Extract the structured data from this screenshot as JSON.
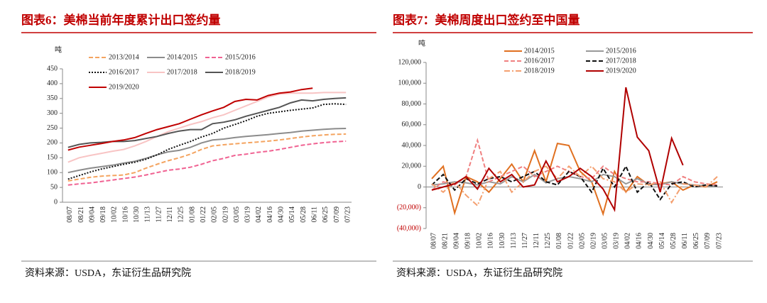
{
  "chart_data": [
    {
      "type": "line",
      "title": "图表6：美棉当前年度累计出口签约量",
      "y_unit": "吨",
      "source": "资料来源：USDA，东证衍生品研究院",
      "categories": [
        "08/07",
        "08/21",
        "09/04",
        "09/18",
        "10/02",
        "10/16",
        "10/30",
        "11/13",
        "11/27",
        "12/11",
        "12/25",
        "01/08",
        "01/22",
        "02/05",
        "02/19",
        "03/05",
        "03/19",
        "04/02",
        "04/16",
        "04/30",
        "05/14",
        "05/28",
        "06/11",
        "06/25",
        "07/09",
        "07/23"
      ],
      "ylim": [
        0,
        450
      ],
      "yticks": [
        0,
        50,
        100,
        150,
        200,
        250,
        300,
        350,
        400,
        450
      ],
      "series": [
        {
          "name": "2013/2014",
          "color": "#f4a460",
          "dash": "dashed",
          "values": [
            72,
            78,
            84,
            88,
            90,
            92,
            100,
            115,
            128,
            140,
            150,
            162,
            178,
            190,
            194,
            197,
            200,
            203,
            206,
            210,
            215,
            220,
            224,
            227,
            229,
            230
          ]
        },
        {
          "name": "2014/2015",
          "color": "#8c8c8c",
          "dash": "solid",
          "values": [
            100,
            108,
            115,
            120,
            125,
            132,
            138,
            148,
            160,
            170,
            175,
            185,
            200,
            210,
            213,
            218,
            222,
            225,
            228,
            232,
            235,
            240,
            243,
            246,
            248,
            249
          ]
        },
        {
          "name": "2015/2016",
          "color": "#f06292",
          "dash": "dashed",
          "values": [
            58,
            62,
            65,
            70,
            75,
            80,
            85,
            92,
            100,
            108,
            112,
            118,
            128,
            140,
            148,
            158,
            162,
            168,
            172,
            178,
            185,
            192,
            197,
            201,
            204,
            206
          ]
        },
        {
          "name": "2016/2017",
          "color": "#111111",
          "dash": "dotted",
          "values": [
            78,
            90,
            102,
            112,
            120,
            128,
            135,
            145,
            160,
            178,
            192,
            205,
            220,
            232,
            250,
            262,
            275,
            290,
            300,
            305,
            310,
            314,
            318,
            330,
            332,
            330
          ]
        },
        {
          "name": "2017/2018",
          "color": "#f8c4c4",
          "dash": "solid",
          "values": [
            135,
            150,
            158,
            165,
            172,
            178,
            190,
            205,
            222,
            238,
            250,
            262,
            272,
            285,
            295,
            310,
            325,
            340,
            355,
            365,
            368,
            368,
            368,
            370,
            370,
            370
          ]
        },
        {
          "name": "2018/2019",
          "color": "#555555",
          "dash": "solid",
          "values": [
            185,
            195,
            200,
            202,
            205,
            205,
            208,
            215,
            222,
            232,
            240,
            245,
            245,
            265,
            270,
            278,
            290,
            300,
            310,
            320,
            335,
            345,
            342,
            347,
            350,
            352
          ]
        },
        {
          "name": "2019/2020",
          "color": "#c00000",
          "dash": "solid",
          "values": [
            176,
            186,
            192,
            198,
            205,
            210,
            218,
            232,
            245,
            255,
            265,
            280,
            295,
            308,
            320,
            340,
            347,
            345,
            360,
            368,
            372,
            380,
            385,
            null,
            null,
            null
          ]
        }
      ]
    },
    {
      "type": "line",
      "title": "图表7：美棉周度出口签约至中国量",
      "y_unit": "吨",
      "source": "资料来源：USDA，东证衍生品研究院",
      "categories": [
        "08/07",
        "08/21",
        "09/04",
        "09/18",
        "10/02",
        "10/16",
        "10/30",
        "11/13",
        "11/27",
        "12/11",
        "12/25",
        "01/08",
        "01/22",
        "02/05",
        "02/19",
        "03/05",
        "03/19",
        "04/02",
        "04/16",
        "04/30",
        "05/14",
        "05/28",
        "06/11",
        "06/25",
        "07/09",
        "07/23"
      ],
      "ylim": [
        -40000,
        120000
      ],
      "yticks": [
        {
          "value": -40000,
          "label": "(40,000)"
        },
        {
          "value": -20000,
          "label": "(20,000)"
        },
        0,
        {
          "value": 20000,
          "label": "20,000"
        },
        {
          "value": 40000,
          "label": "40,000"
        },
        {
          "value": 60000,
          "label": "60,000"
        },
        {
          "value": 80000,
          "label": "80,000"
        },
        {
          "value": 100000,
          "label": "100,000"
        },
        {
          "value": 120000,
          "label": "120,000"
        }
      ],
      "series": [
        {
          "name": "2014/2015",
          "color": "#e07020",
          "dash": "solid",
          "values": [
            8000,
            20000,
            -25000,
            10000,
            5000,
            -5000,
            8000,
            22000,
            5000,
            35000,
            5000,
            42000,
            40000,
            15000,
            5000,
            -26000,
            15000,
            -5000,
            10000,
            2000,
            3000,
            5000,
            -3000,
            2000,
            0,
            5000
          ]
        },
        {
          "name": "2015/2016",
          "color": "#999999",
          "dash": "solid",
          "values": [
            2000,
            3000,
            5000,
            4000,
            2000,
            5000,
            3000,
            10000,
            5000,
            12000,
            4000,
            8000,
            10000,
            8000,
            5000,
            12000,
            10000,
            3000,
            8000,
            3000,
            2000,
            5000,
            3000,
            2000,
            1000,
            1000
          ]
        },
        {
          "name": "2016/2017",
          "color": "#f08080",
          "dash": "dashed",
          "values": [
            -3000,
            5000,
            2000,
            10000,
            45000,
            5000,
            10000,
            15000,
            20000,
            10000,
            15000,
            20000,
            15000,
            10000,
            8000,
            20000,
            12000,
            8000,
            5000,
            5000,
            3000,
            2000,
            10000,
            5000,
            3000,
            2000
          ]
        },
        {
          "name": "2017/2018",
          "color": "#111111",
          "dash": "dashed",
          "values": [
            2000,
            12000,
            -3000,
            8000,
            3000,
            8000,
            10000,
            5000,
            10000,
            15000,
            5000,
            2000,
            15000,
            10000,
            -5000,
            18000,
            0,
            20000,
            -5000,
            5000,
            -12000,
            3000,
            5000,
            0,
            2000,
            1000
          ]
        },
        {
          "name": "2018/2019",
          "color": "#f4a070",
          "dash": "dashdot",
          "values": [
            3000,
            -5000,
            5000,
            -8000,
            -18000,
            8000,
            15000,
            -5000,
            5000,
            15000,
            20000,
            8000,
            20000,
            10000,
            20000,
            8000,
            5000,
            -5000,
            3000,
            2000,
            5000,
            -15000,
            3000,
            2000,
            0,
            10000
          ]
        },
        {
          "name": "2019/2020",
          "color": "#b00000",
          "dash": "solid",
          "values": [
            -3000,
            0,
            3000,
            10000,
            -2000,
            18000,
            5000,
            12000,
            0,
            2000,
            25000,
            5000,
            10000,
            18000,
            10000,
            -2000,
            -22000,
            96000,
            48000,
            35000,
            -5000,
            47000,
            21000,
            null,
            null,
            null
          ]
        }
      ]
    }
  ]
}
